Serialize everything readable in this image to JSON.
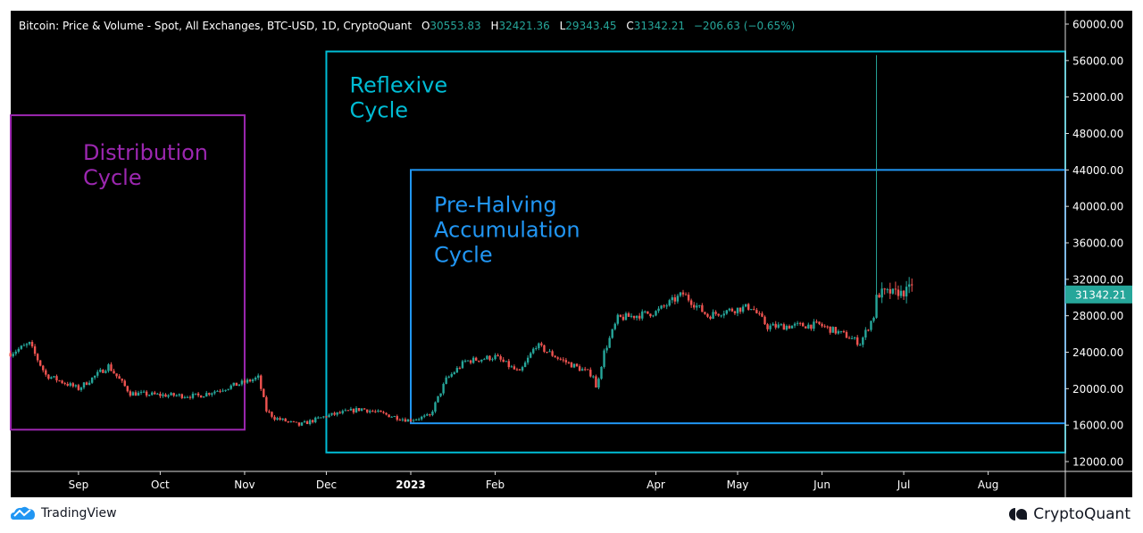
{
  "header": {
    "title": "Bitcoin: Price & Volume - Spot, All Exchanges, BTC-USD, 1D, CryptoQuant",
    "o_label": "O",
    "o": "30553.83",
    "h_label": "H",
    "h": "32421.36",
    "l_label": "L",
    "l": "29343.45",
    "c_label": "C",
    "c": "31342.21",
    "change": "−206.63 (−0.65%)"
  },
  "footer": {
    "left_logo": "TradingView",
    "right_logo": "CryptoQuant"
  },
  "colors": {
    "up": "#26a69a",
    "down": "#ef5350",
    "distribution": "#9c27b0",
    "reflexive": "#00bcd4",
    "prehalving": "#2196f3",
    "background": "#000000"
  },
  "chart_data": {
    "type": "candlestick",
    "ylim": [
      12000,
      60000
    ],
    "y_ticks": [
      "60000.00",
      "56000.00",
      "52000.00",
      "48000.00",
      "44000.00",
      "40000.00",
      "36000.00",
      "32000.00",
      "28000.00",
      "24000.00",
      "20000.00",
      "16000.00",
      "12000.00"
    ],
    "x_ticks": [
      {
        "label": "Sep",
        "date": "2022-09-01"
      },
      {
        "label": "Oct",
        "date": "2022-10-01"
      },
      {
        "label": "Nov",
        "date": "2022-11-01"
      },
      {
        "label": "Dec",
        "date": "2022-12-01"
      },
      {
        "label": "2023",
        "date": "2023-01-01"
      },
      {
        "label": "Feb",
        "date": "2023-02-01"
      },
      {
        "label": "Apr",
        "date": "2023-04-01"
      },
      {
        "label": "May",
        "date": "2023-05-01"
      },
      {
        "label": "Jun",
        "date": "2023-06-01"
      },
      {
        "label": "Jul",
        "date": "2023-07-01"
      },
      {
        "label": "Aug",
        "date": "2023-08-01"
      }
    ],
    "last_price": "31342.21",
    "approx_closes": [
      [
        "2022-08-07",
        23900
      ],
      [
        "2022-08-14",
        24900
      ],
      [
        "2022-08-20",
        21500
      ],
      [
        "2022-09-01",
        20000
      ],
      [
        "2022-09-12",
        22500
      ],
      [
        "2022-09-20",
        19500
      ],
      [
        "2022-10-01",
        19300
      ],
      [
        "2022-10-15",
        19200
      ],
      [
        "2022-11-01",
        20700
      ],
      [
        "2022-11-06",
        21200
      ],
      [
        "2022-11-09",
        17600
      ],
      [
        "2022-11-12",
        16800
      ],
      [
        "2022-11-21",
        16000
      ],
      [
        "2022-12-01",
        17000
      ],
      [
        "2022-12-14",
        17800
      ],
      [
        "2022-12-31",
        16550
      ],
      [
        "2023-01-08",
        17000
      ],
      [
        "2023-01-14",
        21000
      ],
      [
        "2023-01-21",
        23000
      ],
      [
        "2023-02-01",
        23500
      ],
      [
        "2023-02-10",
        21700
      ],
      [
        "2023-02-16",
        24800
      ],
      [
        "2023-02-25",
        23200
      ],
      [
        "2023-03-09",
        21500
      ],
      [
        "2023-03-10",
        20000
      ],
      [
        "2023-03-13",
        24000
      ],
      [
        "2023-03-18",
        27700
      ],
      [
        "2023-04-01",
        28400
      ],
      [
        "2023-04-11",
        30400
      ],
      [
        "2023-04-20",
        28000
      ],
      [
        "2023-04-26",
        28500
      ],
      [
        "2023-05-06",
        29000
      ],
      [
        "2023-05-12",
        26800
      ],
      [
        "2023-05-31",
        27000
      ],
      [
        "2023-06-10",
        25800
      ],
      [
        "2023-06-15",
        25000
      ],
      [
        "2023-06-20",
        28000
      ],
      [
        "2023-06-21",
        30000
      ],
      [
        "2023-06-23",
        30600
      ],
      [
        "2023-07-01",
        30500
      ],
      [
        "2023-07-04",
        31342.21
      ]
    ],
    "spike": {
      "date": "2023-06-21",
      "high": 56600
    },
    "annotations": [
      {
        "label_lines": [
          "Distribution",
          "Cycle"
        ],
        "color": "#9c27b0",
        "from": "2022-07-31",
        "to": "2022-11-01",
        "top": 50000,
        "bottom": 15500
      },
      {
        "label_lines": [
          "Reflexive",
          "Cycle"
        ],
        "color": "#00bcd4",
        "from": "2022-12-01",
        "to": "2023-09-01",
        "top": 57000,
        "bottom": 13000
      },
      {
        "label_lines": [
          "Pre-Halving",
          "Accumulation",
          "Cycle"
        ],
        "color": "#2196f3",
        "from": "2023-01-01",
        "to": "2023-09-01",
        "top": 44000,
        "bottom": 16200
      }
    ]
  }
}
